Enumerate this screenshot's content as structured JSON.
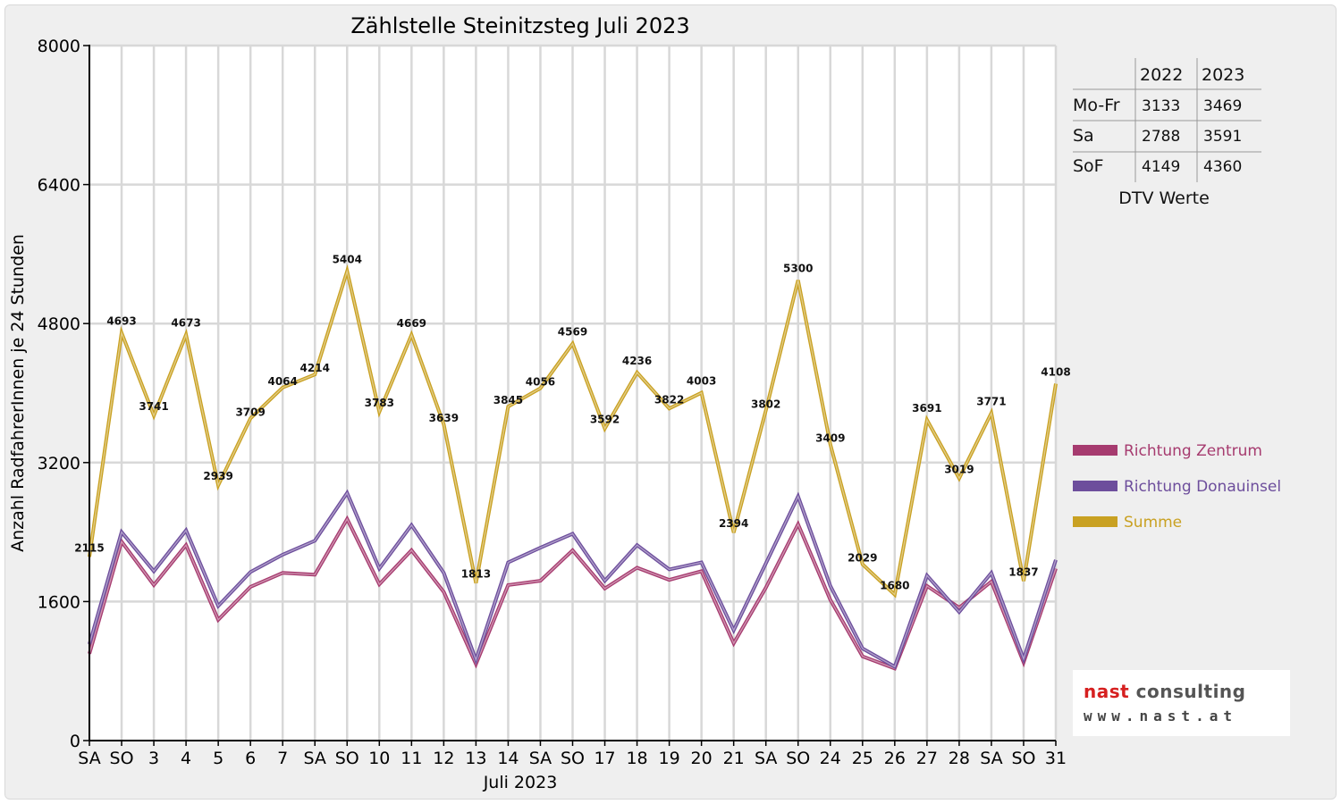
{
  "chart_data": {
    "type": "line",
    "title": "Zählstelle Steinitzsteg Juli 2023",
    "xlabel": "Juli 2023",
    "ylabel": "Anzahl RadfahrerInnen je 24 Stunden",
    "ylim": [
      0,
      8000
    ],
    "yticks": [
      0,
      1600,
      3200,
      4800,
      6400,
      8000
    ],
    "grid": true,
    "legend_position": "right",
    "categories": [
      "SA",
      "SO",
      "3",
      "4",
      "5",
      "6",
      "7",
      "SA",
      "SO",
      "10",
      "11",
      "12",
      "13",
      "14",
      "SA",
      "SO",
      "17",
      "18",
      "19",
      "20",
      "21",
      "SA",
      "SO",
      "24",
      "25",
      "26",
      "27",
      "28",
      "SA",
      "SO",
      "31"
    ],
    "weekend_color": "#e00000",
    "series": [
      {
        "name": "Richtung Zentrum",
        "color": "#a63b6f",
        "values": [
          1000,
          2290,
          1790,
          2250,
          1390,
          1770,
          1930,
          1910,
          2550,
          1800,
          2190,
          1710,
          880,
          1790,
          1840,
          2190,
          1750,
          1990,
          1850,
          1950,
          1120,
          1760,
          2490,
          1620,
          970,
          830,
          1780,
          1530,
          1830,
          900,
          1980
        ]
      },
      {
        "name": "Richtung Donauinsel",
        "color": "#6d4e9c",
        "values": [
          1110,
          2400,
          1950,
          2420,
          1550,
          1940,
          2140,
          2300,
          2850,
          1980,
          2480,
          1930,
          930,
          2050,
          2220,
          2380,
          1840,
          2250,
          1970,
          2050,
          1270,
          2040,
          2810,
          1780,
          1060,
          850,
          1900,
          1480,
          1930,
          940,
          2080
        ]
      },
      {
        "name": "Summe",
        "color": "#c9a122",
        "values": [
          2115,
          4693,
          3741,
          4673,
          2939,
          3709,
          4064,
          4214,
          5404,
          3783,
          4669,
          3639,
          1813,
          3845,
          4056,
          4569,
          3592,
          4236,
          3822,
          4003,
          2394,
          3802,
          5300,
          3409,
          2029,
          1680,
          3691,
          3019,
          3771,
          1837,
          4108
        ],
        "labels": [
          "2115",
          "4693",
          "3741",
          "4673",
          "2939",
          "3709",
          "4064",
          "4214",
          "5404",
          "3783",
          "4669",
          "3639",
          "1813",
          "3845",
          "4056",
          "4569",
          "3592",
          "4236",
          "3822",
          "4003",
          "2394",
          "3802",
          "5300",
          "3409",
          "2029",
          "1680",
          "3691",
          "3019",
          "3771",
          "1837",
          "4108"
        ]
      }
    ]
  },
  "dtv_table": {
    "headers": [
      "",
      "2022",
      "2023"
    ],
    "rows": [
      [
        "Mo-Fr",
        "3133",
        "3469"
      ],
      [
        "Sa",
        "2788",
        "3591"
      ],
      [
        "SoF",
        "4149",
        "4360"
      ]
    ],
    "caption": "DTV Werte"
  },
  "logo": {
    "word1": "nast",
    "word2": "consulting",
    "url_text": "www.nast.at"
  }
}
